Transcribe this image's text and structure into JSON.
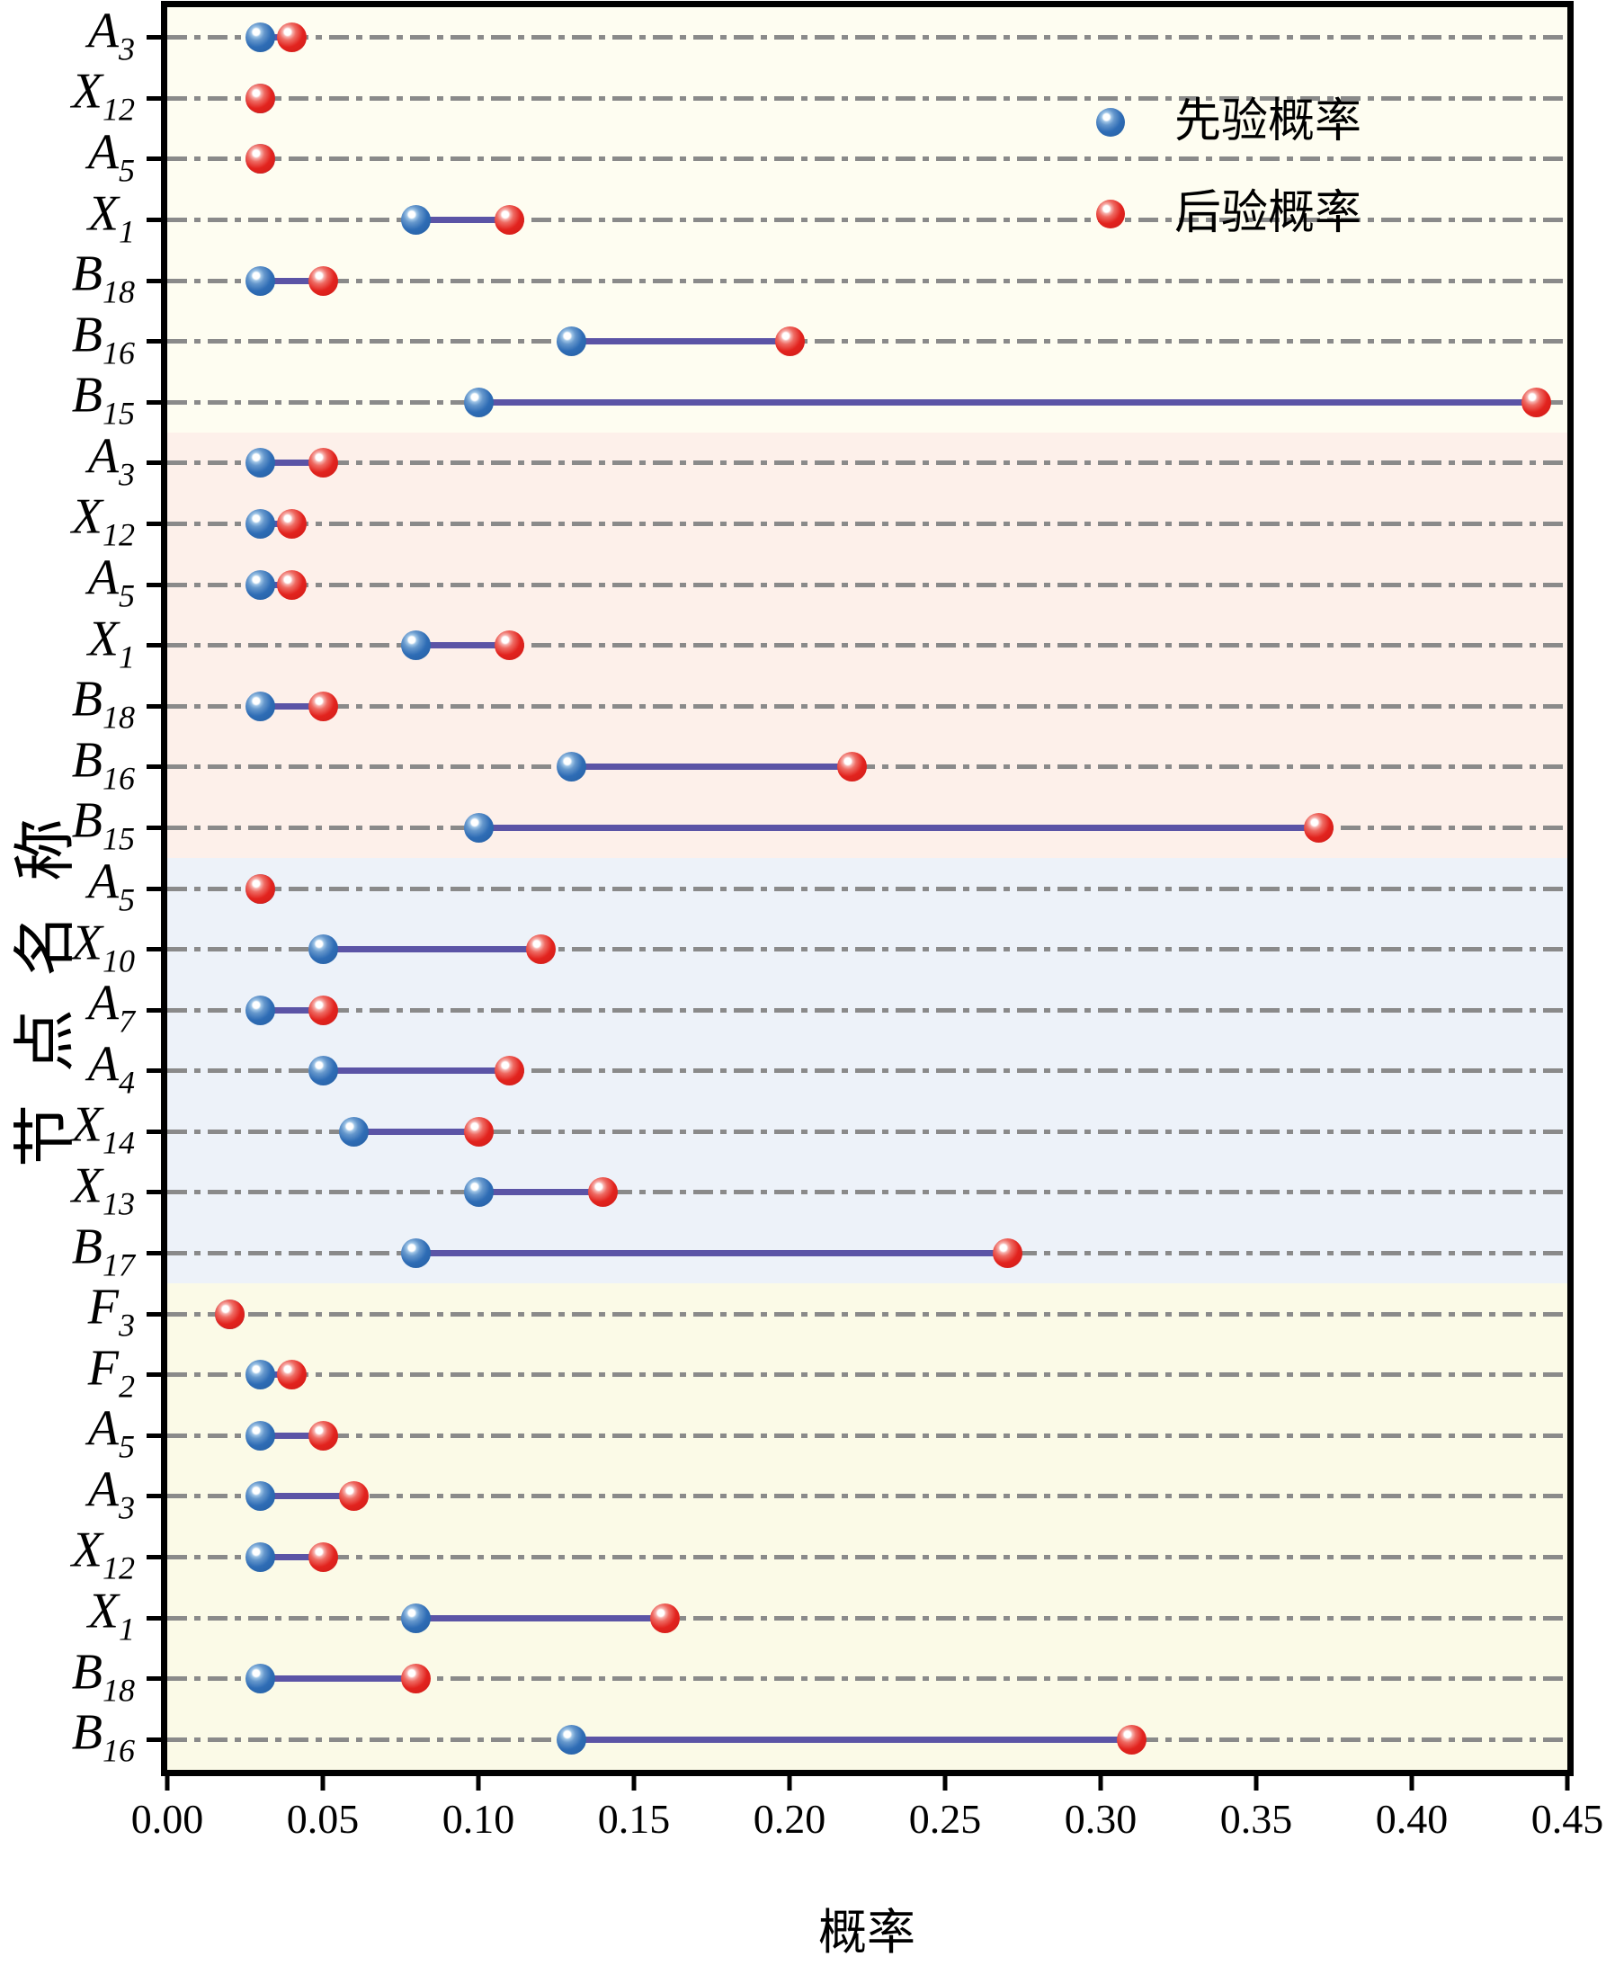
{
  "chart_data": {
    "type": "dumbbell",
    "title": "",
    "xlabel": "概率",
    "ylabel": "节点名称",
    "xlim": [
      0,
      0.45
    ],
    "grid": "horizontal-dashdot",
    "legend_position": "upper-right-inside",
    "xticks": [
      "0.00",
      "0.05",
      "0.10",
      "0.15",
      "0.20",
      "0.25",
      "0.30",
      "0.35",
      "0.40",
      "0.45"
    ],
    "legend": [
      {
        "name": "先验概率",
        "color": "#2e6cb5"
      },
      {
        "name": "后验概率",
        "color": "#e2231e"
      }
    ],
    "groups": [
      {
        "bg": "#fefdf1",
        "rows": [
          {
            "label": "A",
            "sub": "3",
            "prior": 0.03,
            "posterior": 0.04
          },
          {
            "label": "X",
            "sub": "12",
            "prior": 0.03,
            "posterior": 0.03
          },
          {
            "label": "A",
            "sub": "5",
            "prior": 0.03,
            "posterior": 0.03
          },
          {
            "label": "X",
            "sub": "1",
            "prior": 0.08,
            "posterior": 0.11
          },
          {
            "label": "B",
            "sub": "18",
            "prior": 0.03,
            "posterior": 0.05
          },
          {
            "label": "B",
            "sub": "16",
            "prior": 0.13,
            "posterior": 0.2
          },
          {
            "label": "B",
            "sub": "15",
            "prior": 0.1,
            "posterior": 0.44
          }
        ]
      },
      {
        "bg": "#fdf0ea",
        "rows": [
          {
            "label": "A",
            "sub": "3",
            "prior": 0.03,
            "posterior": 0.05
          },
          {
            "label": "X",
            "sub": "12",
            "prior": 0.03,
            "posterior": 0.04
          },
          {
            "label": "A",
            "sub": "5",
            "prior": 0.03,
            "posterior": 0.04
          },
          {
            "label": "X",
            "sub": "1",
            "prior": 0.08,
            "posterior": 0.11
          },
          {
            "label": "B",
            "sub": "18",
            "prior": 0.03,
            "posterior": 0.05
          },
          {
            "label": "B",
            "sub": "16",
            "prior": 0.13,
            "posterior": 0.22
          },
          {
            "label": "B",
            "sub": "15",
            "prior": 0.1,
            "posterior": 0.37
          }
        ]
      },
      {
        "bg": "#edf2f9",
        "rows": [
          {
            "label": "A",
            "sub": "5",
            "prior": 0.03,
            "posterior": 0.03
          },
          {
            "label": "X",
            "sub": "10",
            "prior": 0.05,
            "posterior": 0.12
          },
          {
            "label": "A",
            "sub": "7",
            "prior": 0.03,
            "posterior": 0.05
          },
          {
            "label": "A",
            "sub": "4",
            "prior": 0.05,
            "posterior": 0.11
          },
          {
            "label": "X",
            "sub": "14",
            "prior": 0.06,
            "posterior": 0.1
          },
          {
            "label": "X",
            "sub": "13",
            "prior": 0.1,
            "posterior": 0.14
          },
          {
            "label": "B",
            "sub": "17",
            "prior": 0.08,
            "posterior": 0.27
          }
        ]
      },
      {
        "bg": "#fbfae7",
        "rows": [
          {
            "label": "F",
            "sub": "3",
            "prior": 0.02,
            "posterior": 0.02
          },
          {
            "label": "F",
            "sub": "2",
            "prior": 0.03,
            "posterior": 0.04
          },
          {
            "label": "A",
            "sub": "5",
            "prior": 0.03,
            "posterior": 0.05
          },
          {
            "label": "A",
            "sub": "3",
            "prior": 0.03,
            "posterior": 0.06
          },
          {
            "label": "X",
            "sub": "12",
            "prior": 0.03,
            "posterior": 0.05
          },
          {
            "label": "X",
            "sub": "1",
            "prior": 0.08,
            "posterior": 0.16
          },
          {
            "label": "B",
            "sub": "18",
            "prior": 0.03,
            "posterior": 0.08
          },
          {
            "label": "B",
            "sub": "16",
            "prior": 0.13,
            "posterior": 0.31
          }
        ]
      }
    ],
    "style": {
      "prior_color": "#2e6cb5",
      "posterior_color": "#e2231e",
      "connector_color": "#5b54a6",
      "gridline_color": "#8a8a8a",
      "frame_color": "#000000"
    }
  }
}
